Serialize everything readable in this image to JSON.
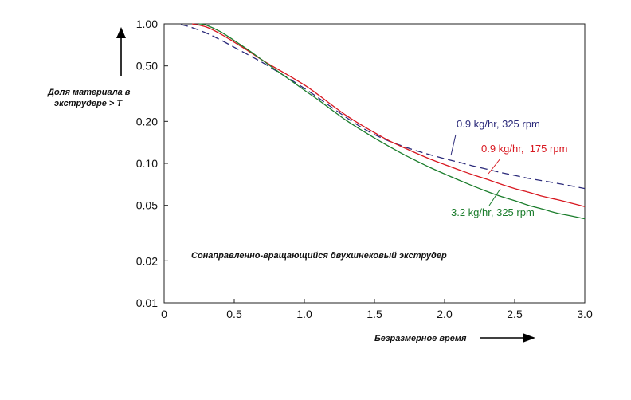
{
  "chart_data": {
    "type": "line",
    "title": "",
    "xlabel": "Безразмерное время",
    "ylabel": "Доля материала в экструдере > T",
    "annotation": "Сонаправленно-вращающийся двухшнековый экструдер",
    "xlim": [
      0,
      3.0
    ],
    "ylim": [
      0.01,
      1.0
    ],
    "yscale": "log",
    "grid": false,
    "x_ticks": [
      "0",
      "0.5",
      "1.0",
      "1.5",
      "2.0",
      "2.5",
      "3.0"
    ],
    "y_ticks": [
      "1.00",
      "0.50",
      "0.20",
      "0.10",
      "0.05",
      "0.02",
      "0.01"
    ],
    "series": [
      {
        "name": "0.9 kg/hr, 325 rpm",
        "color": "#2b2a7a",
        "style": "dashed",
        "x": [
          0.12,
          0.2,
          0.3,
          0.4,
          0.5,
          0.6,
          0.7,
          0.8,
          0.9,
          1.0,
          1.1,
          1.2,
          1.3,
          1.4,
          1.5,
          1.6,
          1.7,
          1.8,
          1.9,
          2.0,
          2.1,
          2.2,
          2.3,
          2.4,
          2.5,
          2.6,
          2.7,
          2.8,
          2.9,
          3.0
        ],
        "y": [
          0.99,
          0.94,
          0.86,
          0.77,
          0.68,
          0.6,
          0.53,
          0.46,
          0.4,
          0.345,
          0.295,
          0.25,
          0.213,
          0.183,
          0.161,
          0.145,
          0.133,
          0.123,
          0.115,
          0.108,
          0.102,
          0.096,
          0.091,
          0.086,
          0.082,
          0.078,
          0.075,
          0.072,
          0.069,
          0.066
        ]
      },
      {
        "name": "0.9 kg/hr,  175 rpm",
        "color": "#d8171f",
        "style": "solid",
        "x": [
          0.2,
          0.3,
          0.4,
          0.5,
          0.6,
          0.7,
          0.8,
          0.9,
          1.0,
          1.1,
          1.2,
          1.3,
          1.4,
          1.5,
          1.6,
          1.7,
          1.8,
          1.9,
          2.0,
          2.1,
          2.2,
          2.3,
          2.4,
          2.5,
          2.6,
          2.7,
          2.8,
          2.9,
          3.0
        ],
        "y": [
          1.0,
          0.95,
          0.85,
          0.74,
          0.64,
          0.55,
          0.48,
          0.42,
          0.365,
          0.31,
          0.26,
          0.22,
          0.19,
          0.166,
          0.146,
          0.131,
          0.118,
          0.107,
          0.098,
          0.09,
          0.083,
          0.077,
          0.071,
          0.066,
          0.062,
          0.058,
          0.055,
          0.052,
          0.049
        ]
      },
      {
        "name": "3.2 kg/hr, 325 rpm",
        "color": "#1b7d2c",
        "style": "solid",
        "x": [
          0.25,
          0.3,
          0.4,
          0.5,
          0.6,
          0.7,
          0.8,
          0.9,
          1.0,
          1.1,
          1.2,
          1.3,
          1.4,
          1.5,
          1.6,
          1.7,
          1.8,
          1.9,
          2.0,
          2.1,
          2.2,
          2.3,
          2.4,
          2.5,
          2.6,
          2.7,
          2.8,
          2.9,
          3.0
        ],
        "y": [
          1.0,
          0.98,
          0.88,
          0.76,
          0.65,
          0.55,
          0.465,
          0.395,
          0.335,
          0.285,
          0.24,
          0.203,
          0.175,
          0.152,
          0.133,
          0.117,
          0.104,
          0.093,
          0.084,
          0.076,
          0.069,
          0.063,
          0.058,
          0.054,
          0.05,
          0.047,
          0.044,
          0.042,
          0.04
        ]
      }
    ]
  }
}
